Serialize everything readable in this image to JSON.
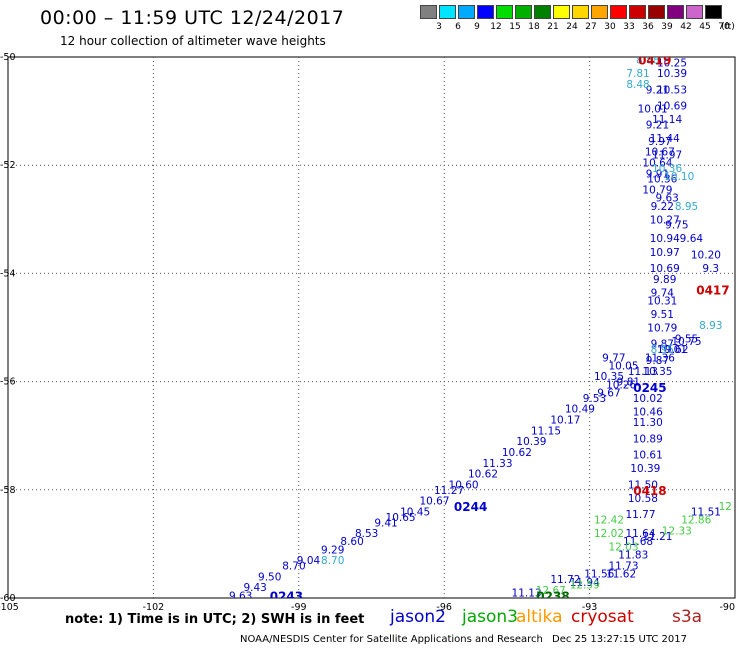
{
  "header": {
    "title": "00:00 – 11:59 UTC 12/24/2017",
    "subtitle": "12 hour collection of altimeter wave heights"
  },
  "colorbar": {
    "unit": "(ft)",
    "items": [
      {
        "label": "3",
        "color": "#808080"
      },
      {
        "label": "6",
        "color": "#00e5ff"
      },
      {
        "label": "9",
        "color": "#00aaff"
      },
      {
        "label": "12",
        "color": "#0000ff"
      },
      {
        "label": "15",
        "color": "#00dd00"
      },
      {
        "label": "18",
        "color": "#00b000"
      },
      {
        "label": "21",
        "color": "#008000"
      },
      {
        "label": "24",
        "color": "#ffff00"
      },
      {
        "label": "27",
        "color": "#ffd700"
      },
      {
        "label": "30",
        "color": "#ffa500"
      },
      {
        "label": "33",
        "color": "#ff0000"
      },
      {
        "label": "36",
        "color": "#cc0000"
      },
      {
        "label": "39",
        "color": "#990000"
      },
      {
        "label": "42",
        "color": "#800080"
      },
      {
        "label": "45",
        "color": "#cc66cc"
      },
      {
        "label": "70",
        "color": "#000000"
      }
    ]
  },
  "map": {
    "lat_labels": [
      "-50",
      "-52",
      "-54",
      "-56",
      "-58",
      "-60"
    ],
    "lon_labels": [
      "-105",
      "-102",
      "-99",
      "-96",
      "-93",
      "-90"
    ],
    "pass_labels": [
      {
        "text": "0419",
        "lon": -92.0,
        "lat": -50.05,
        "color": "#cc0000"
      },
      {
        "text": "0417",
        "lon": -90.8,
        "lat": -54.3,
        "color": "#cc0000"
      },
      {
        "text": "0245",
        "lon": -92.1,
        "lat": -56.1,
        "color": "#0000cc"
      },
      {
        "text": "0418",
        "lon": -92.1,
        "lat": -58.0,
        "color": "#cc0000"
      },
      {
        "text": "0244",
        "lon": -95.8,
        "lat": -58.3,
        "color": "#0000cc"
      },
      {
        "text": "0243",
        "lon": -99.6,
        "lat": -59.95,
        "color": "#0000cc"
      },
      {
        "text": "0238",
        "lon": -94.1,
        "lat": -59.95,
        "color": "#006600"
      }
    ],
    "tracks": [
      {
        "name": "jason2-diagonal",
        "color": "#0000cc",
        "points": [
          {
            "lon": -100.2,
            "lat": -59.95,
            "v": "9.63"
          },
          {
            "lon": -99.9,
            "lat": -59.8,
            "v": "9.43"
          },
          {
            "lon": -99.6,
            "lat": -59.6,
            "v": "9.50"
          },
          {
            "lon": -99.1,
            "lat": -59.4,
            "v": "8.70"
          },
          {
            "lon": -98.8,
            "lat": -59.3,
            "v": "9.04"
          },
          {
            "lon": -98.3,
            "lat": -59.1,
            "v": "9.29"
          },
          {
            "lon": -97.9,
            "lat": -58.95,
            "v": "8.60"
          },
          {
            "lon": -97.6,
            "lat": -58.8,
            "v": "8.53"
          },
          {
            "lon": -97.2,
            "lat": -58.6,
            "v": "9.41"
          },
          {
            "lon": -96.9,
            "lat": -58.5,
            "v": "10.65"
          },
          {
            "lon": -96.6,
            "lat": -58.4,
            "v": "10.45"
          },
          {
            "lon": -96.2,
            "lat": -58.2,
            "v": "10.67"
          },
          {
            "lon": -95.9,
            "lat": -58.0,
            "v": "11.27"
          },
          {
            "lon": -95.6,
            "lat": -57.9,
            "v": "10.60"
          },
          {
            "lon": -95.2,
            "lat": -57.7,
            "v": "10.62"
          },
          {
            "lon": -94.9,
            "lat": -57.5,
            "v": "11.33"
          },
          {
            "lon": -94.5,
            "lat": -57.3,
            "v": "10.62"
          },
          {
            "lon": -94.2,
            "lat": -57.1,
            "v": "10.39"
          },
          {
            "lon": -93.9,
            "lat": -56.9,
            "v": "11.15"
          },
          {
            "lon": -93.5,
            "lat": -56.7,
            "v": "10.17"
          },
          {
            "lon": -93.2,
            "lat": -56.5,
            "v": "10.49"
          },
          {
            "lon": -92.9,
            "lat": -56.3,
            "v": "9.53"
          },
          {
            "lon": -92.6,
            "lat": -56.2,
            "v": "9.67"
          },
          {
            "lon": -92.2,
            "lat": -56.0,
            "v": "9.81"
          },
          {
            "lon": -91.9,
            "lat": -55.8,
            "v": "11.13"
          },
          {
            "lon": -91.6,
            "lat": -55.6,
            "v": "9.87"
          },
          {
            "lon": -91.3,
            "lat": -55.4,
            "v": "10.01"
          },
          {
            "lon": -91.0,
            "lat": -55.25,
            "v": "10.75"
          }
        ]
      },
      {
        "name": "jason2-vertical",
        "color": "#0000cc",
        "points": [
          {
            "lon": -91.3,
            "lat": -50.1,
            "v": "10.25"
          },
          {
            "lon": -91.3,
            "lat": -50.3,
            "v": "10.39"
          },
          {
            "lon": -91.3,
            "lat": -50.6,
            "v": "10.53"
          },
          {
            "lon": -91.3,
            "lat": -50.9,
            "v": "10.69"
          },
          {
            "lon": -91.4,
            "lat": -51.15,
            "v": "11.14"
          },
          {
            "lon": -91.45,
            "lat": -51.5,
            "v": "11.44"
          },
          {
            "lon": -91.4,
            "lat": -51.8,
            "v": "11.97"
          },
          {
            "lon": -91.5,
            "lat": -52.25,
            "v": "10.36"
          },
          {
            "lon": -91.4,
            "lat": -52.6,
            "v": "9.63"
          },
          {
            "lon": -91.45,
            "lat": -53.0,
            "v": "10.27"
          },
          {
            "lon": -91.45,
            "lat": -53.35,
            "v": "10.94"
          },
          {
            "lon": -91.45,
            "lat": -53.6,
            "v": "10.97"
          },
          {
            "lon": -91.45,
            "lat": -53.9,
            "v": "10.69"
          },
          {
            "lon": -91.45,
            "lat": -54.1,
            "v": "9.89"
          },
          {
            "lon": -91.5,
            "lat": -54.35,
            "v": "9.74"
          },
          {
            "lon": -91.5,
            "lat": -54.5,
            "v": "10.31"
          },
          {
            "lon": -91.5,
            "lat": -54.75,
            "v": "9.51"
          },
          {
            "lon": -91.5,
            "lat": -55.0,
            "v": "10.79"
          },
          {
            "lon": -91.5,
            "lat": -55.3,
            "v": "9.87"
          },
          {
            "lon": -91.55,
            "lat": -55.55,
            "v": "11.36"
          },
          {
            "lon": -91.6,
            "lat": -55.8,
            "v": "10.35"
          },
          {
            "lon": -91.8,
            "lat": -56.3,
            "v": "10.02"
          },
          {
            "lon": -91.8,
            "lat": -56.55,
            "v": "10.46"
          },
          {
            "lon": -91.8,
            "lat": -56.75,
            "v": "11.30"
          },
          {
            "lon": -91.8,
            "lat": -57.05,
            "v": "10.89"
          },
          {
            "lon": -91.8,
            "lat": -57.35,
            "v": "10.61"
          },
          {
            "lon": -91.85,
            "lat": -57.6,
            "v": "10.39"
          },
          {
            "lon": -91.9,
            "lat": -57.9,
            "v": "11.50"
          },
          {
            "lon": -91.9,
            "lat": -58.15,
            "v": "10.58"
          },
          {
            "lon": -91.95,
            "lat": -58.45,
            "v": "11.77"
          },
          {
            "lon": -91.95,
            "lat": -58.8,
            "v": "11.64"
          },
          {
            "lon": -92.0,
            "lat": -58.95,
            "v": "11.68"
          }
        ]
      },
      {
        "name": "cryosat-vertical",
        "color": "#0000cc",
        "points": [
          {
            "lon": -91.6,
            "lat": -50.6,
            "v": "9.21"
          },
          {
            "lon": -91.7,
            "lat": -50.95,
            "v": "10.01"
          },
          {
            "lon": -91.6,
            "lat": -51.25,
            "v": "9.21"
          },
          {
            "lon": -91.55,
            "lat": -51.55,
            "v": "9.97"
          },
          {
            "lon": -91.55,
            "lat": -51.75,
            "v": "10.67"
          },
          {
            "lon": -91.6,
            "lat": -51.95,
            "v": "10.64"
          },
          {
            "lon": -91.6,
            "lat": -52.15,
            "v": "9.91"
          },
          {
            "lon": -91.6,
            "lat": -52.45,
            "v": "10.79"
          },
          {
            "lon": -91.5,
            "lat": -52.75,
            "v": "9.22"
          },
          {
            "lon": -91.2,
            "lat": -53.1,
            "v": "9.75"
          },
          {
            "lon": -90.9,
            "lat": -53.35,
            "v": "9.64"
          },
          {
            "lon": -90.6,
            "lat": -53.65,
            "v": "10.20"
          },
          {
            "lon": -90.5,
            "lat": -53.9,
            "v": "9.3"
          }
        ]
      },
      {
        "name": "cryosat-diagonal",
        "color": "#0000cc",
        "points": [
          {
            "lon": -91.2,
            "lat": -55.4,
            "v": "9.62"
          },
          {
            "lon": -91.0,
            "lat": -55.2,
            "v": "9.55"
          },
          {
            "lon": -92.5,
            "lat": -55.55,
            "v": "9.77"
          },
          {
            "lon": -92.3,
            "lat": -55.7,
            "v": "10.05"
          },
          {
            "lon": -92.6,
            "lat": -55.9,
            "v": "10.35"
          },
          {
            "lon": -92.35,
            "lat": -56.05,
            "v": "10.26"
          }
        ]
      },
      {
        "name": "cryosat-lower",
        "color": "#0000cc",
        "points": [
          {
            "lon": -91.6,
            "lat": -58.85,
            "v": "11.21"
          },
          {
            "lon": -92.1,
            "lat": -59.2,
            "v": "11.83"
          },
          {
            "lon": -92.3,
            "lat": -59.4,
            "v": "11.73"
          },
          {
            "lon": -92.35,
            "lat": -59.55,
            "v": "11.62"
          },
          {
            "lon": -92.8,
            "lat": -59.55,
            "v": "11.56"
          },
          {
            "lon": -93.1,
            "lat": -59.7,
            "v": "11.94"
          },
          {
            "lon": -93.5,
            "lat": -59.65,
            "v": "11.72"
          },
          {
            "lon": -94.3,
            "lat": -59.9,
            "v": "11.13"
          },
          {
            "lon": -90.6,
            "lat": -58.4,
            "v": "11.51"
          }
        ]
      },
      {
        "name": "jason3",
        "color": "#44cc44",
        "points": [
          {
            "lon": -92.6,
            "lat": -58.55,
            "v": "12.42"
          },
          {
            "lon": -92.6,
            "lat": -58.8,
            "v": "12.02"
          },
          {
            "lon": -92.3,
            "lat": -59.05,
            "v": "12.03"
          },
          {
            "lon": -91.2,
            "lat": -58.75,
            "v": "12.33"
          },
          {
            "lon": -90.8,
            "lat": -58.55,
            "v": "12.86"
          },
          {
            "lon": -90.2,
            "lat": -58.3,
            "v": "12"
          },
          {
            "lon": -93.1,
            "lat": -59.75,
            "v": "12.59"
          },
          {
            "lon": -93.8,
            "lat": -59.85,
            "v": "12.67"
          }
        ]
      },
      {
        "name": "altika",
        "color": "#33aacc",
        "points": [
          {
            "lon": -91.8,
            "lat": -50.05,
            "v": "8.88"
          },
          {
            "lon": -92.0,
            "lat": -50.3,
            "v": "7.81"
          },
          {
            "lon": -92.0,
            "lat": -50.5,
            "v": "8.48"
          },
          {
            "lon": -91.0,
            "lat": -52.75,
            "v": "8.95"
          },
          {
            "lon": -91.4,
            "lat": -52.05,
            "v": "10.36"
          },
          {
            "lon": -91.15,
            "lat": -52.2,
            "v": "10.10"
          },
          {
            "lon": -90.5,
            "lat": -54.95,
            "v": "8.93"
          },
          {
            "lon": -91.5,
            "lat": -55.4,
            "v": "8.95"
          },
          {
            "lon": -98.3,
            "lat": -59.3,
            "v": "8.70"
          }
        ]
      }
    ]
  },
  "footer": {
    "note": "note:  1) Time is in UTC;  2) SWH is in feet",
    "legend": [
      {
        "label": "jason2",
        "color": "#0000cc"
      },
      {
        "label": "jason3",
        "color": "#00aa00"
      },
      {
        "label": "altika",
        "color": "#ff9900"
      },
      {
        "label": "cryosat",
        "color": "#cc0000"
      },
      {
        "label": "s3a",
        "color": "#aa2222"
      }
    ],
    "credit": "NOAA/NESDIS Center for Satellite Applications and Research",
    "stamp": "Dec 25 13:27:15 UTC 2017"
  }
}
